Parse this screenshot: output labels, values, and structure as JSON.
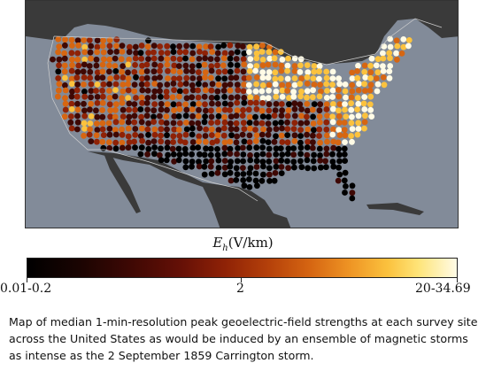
{
  "colorbar": {
    "symbol": "E",
    "subscript": "h",
    "unit": "(V/km)",
    "ticks": [
      "0.01-0.2",
      "2",
      "20-34.69"
    ]
  },
  "caption": "Map of median 1-min-resolution peak geoelectric-field strengths at each survey site across the United States as would be induced by an ensemble of magnetic storms as intense as the 2 September 1859 Carrington storm.",
  "colors": {
    "ocean": "#828b99",
    "land_other": "#3a3a3a",
    "border": "#cfcfcf",
    "colormap": [
      "#000000",
      "#3e0804",
      "#8f2206",
      "#d66612",
      "#fbc23e",
      "#fffbe6"
    ]
  }
}
